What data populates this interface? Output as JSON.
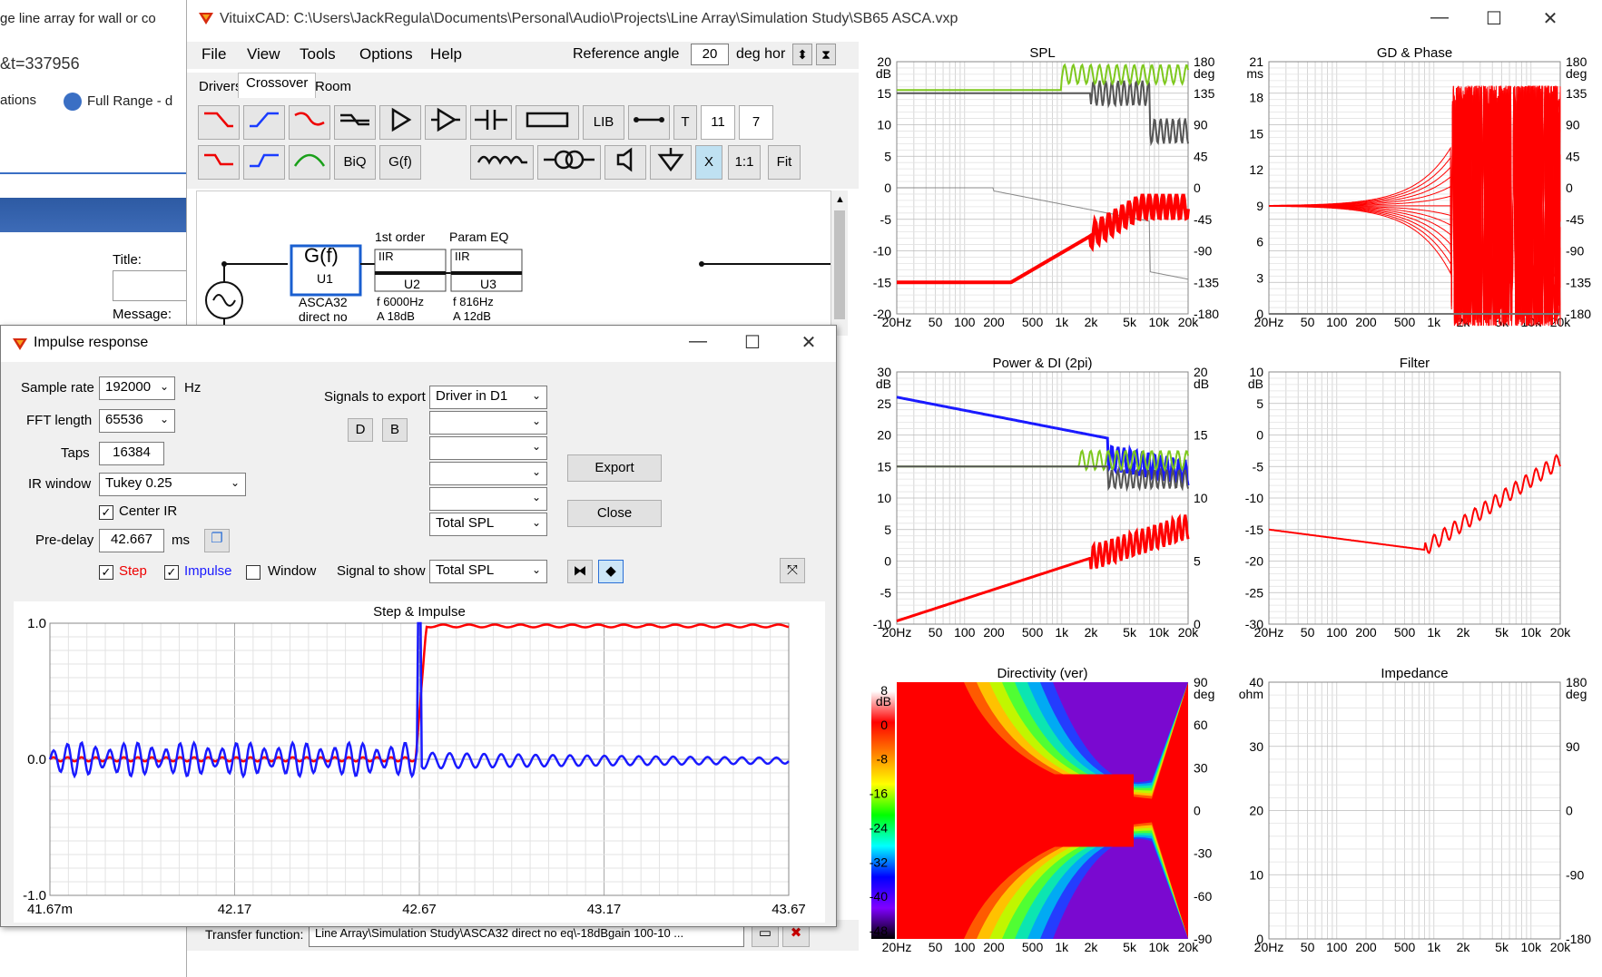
{
  "browser": {
    "tab_title": "ge line array for wall or co",
    "url_fragment": "&t=337956",
    "bookmark1": "ations",
    "bookmark2": "Full Range - d",
    "title_label": "Title:",
    "message_label": "Message:"
  },
  "main": {
    "title": "VituixCAD: C:\\Users\\JackRegula\\Documents\\Personal\\Audio\\Projects\\Line Array\\Simulation Study\\SB65 ASCA.vxp",
    "menu": [
      "File",
      "View",
      "Tools",
      "Options",
      "Help"
    ],
    "reference_angle_label": "Reference angle",
    "reference_angle_value": "20",
    "reference_angle_unit": "deg hor",
    "tabs": [
      "Drivers",
      "Crossover",
      "Room"
    ],
    "active_tab": "Crossover",
    "toolbar": {
      "biq": "BiQ",
      "gf": "G(f)",
      "lib": "LIB",
      "t": "T",
      "val1": "11",
      "val2": "7",
      "x": "X",
      "one_to_one": "1:1",
      "fit": "Fit"
    },
    "schematic": {
      "gf_label": "G(f)",
      "u1": "U1",
      "u1_name": "ASCA32",
      "u1_sub": "direct no",
      "block2_title": "1st order",
      "block2_type": "IIR",
      "u2": "U2",
      "u2_f": "f   6000Hz",
      "u2_a": "A  18dB",
      "block3_title": "Param EQ",
      "block3_type": "IIR",
      "u3": "U3",
      "u3_f": "f   816Hz",
      "u3_a": "A  12dB"
    },
    "transfer_label": "Transfer function:",
    "transfer_value": "Line Array\\Simulation Study\\ASCA32 direct no eq\\-18dBgain 100-10 ...",
    "plots": {
      "spl": {
        "title": "SPL",
        "left_unit": "dB",
        "right_unit": "deg",
        "left_ticks": [
          "20",
          "15",
          "10",
          "5",
          "0",
          "-5",
          "-10",
          "-15",
          "-20"
        ],
        "right_ticks": [
          "180",
          "135",
          "90",
          "45",
          "0",
          "-45",
          "-90",
          "-135",
          "-180"
        ]
      },
      "gd": {
        "title": "GD & Phase",
        "left_unit": "ms",
        "right_unit": "deg",
        "left_ticks": [
          "21",
          "18",
          "15",
          "12",
          "9",
          "6",
          "3",
          "0"
        ],
        "right_ticks": [
          "180",
          "135",
          "90",
          "45",
          "0",
          "-45",
          "-90",
          "-135",
          "-180"
        ]
      },
      "power": {
        "title": "Power & DI (2pi)",
        "left_unit": "dB",
        "right_unit": "dB",
        "left_ticks": [
          "30",
          "25",
          "20",
          "15",
          "10",
          "5",
          "0",
          "-5",
          "-10"
        ],
        "right_ticks": [
          "20",
          "15",
          "10",
          "5",
          "0"
        ]
      },
      "filter": {
        "title": "Filter",
        "left_unit": "dB",
        "left_ticks": [
          "10",
          "5",
          "0",
          "-5",
          "-10",
          "-15",
          "-20",
          "-25",
          "-30"
        ]
      },
      "directivity": {
        "title": "Directivity (ver)",
        "left_unit": "dB",
        "right_unit": "deg",
        "scale_ticks": [
          "8",
          "0",
          "-8",
          "-16",
          "-24",
          "-32",
          "-40",
          "-48"
        ],
        "right_ticks": [
          "90",
          "60",
          "30",
          "0",
          "-30",
          "-60",
          "-90"
        ]
      },
      "impedance": {
        "title": "Impedance",
        "left_unit": "ohm",
        "right_unit": "deg",
        "left_ticks": [
          "40",
          "30",
          "20",
          "10",
          "0"
        ],
        "right_ticks": [
          "180",
          "90",
          "0",
          "-90",
          "-180"
        ]
      },
      "freq_ticks": [
        "20Hz",
        "50",
        "100",
        "200",
        "500",
        "1k",
        "2k",
        "5k",
        "10k",
        "20k"
      ]
    }
  },
  "impulse": {
    "title": "Impulse response",
    "sample_rate_label": "Sample rate",
    "sample_rate": "192000",
    "sample_rate_unit": "Hz",
    "fft_label": "FFT length",
    "fft": "65536",
    "taps_label": "Taps",
    "taps": "16384",
    "irwindow_label": "IR window",
    "irwindow": "Tukey 0.25",
    "center_ir": "Center IR",
    "predelay_label": "Pre-delay",
    "predelay": "42.667",
    "predelay_unit": "ms",
    "signals_export_label": "Signals to export",
    "export_signals": [
      "Driver in D1",
      "",
      "",
      "",
      "",
      "Total SPL"
    ],
    "d_btn": "D",
    "b_btn": "B",
    "export_btn": "Export",
    "close_btn": "Close",
    "step_label": "Step",
    "impulse_label": "Impulse",
    "window_label": "Window",
    "signal_show_label": "Signal to show",
    "signal_show": "Total SPL",
    "plot_title": "Step & Impulse",
    "y_ticks": [
      "1.0",
      "0.0",
      "-1.0"
    ],
    "x_ticks": [
      "41.67m",
      "42.17",
      "42.67",
      "43.17",
      "43.67"
    ]
  },
  "colors": {
    "red": "#ff0000",
    "blue": "#1a1aff",
    "green": "#7ec81e",
    "gray": "#555555",
    "accent_blue": "#2a6fd6"
  }
}
